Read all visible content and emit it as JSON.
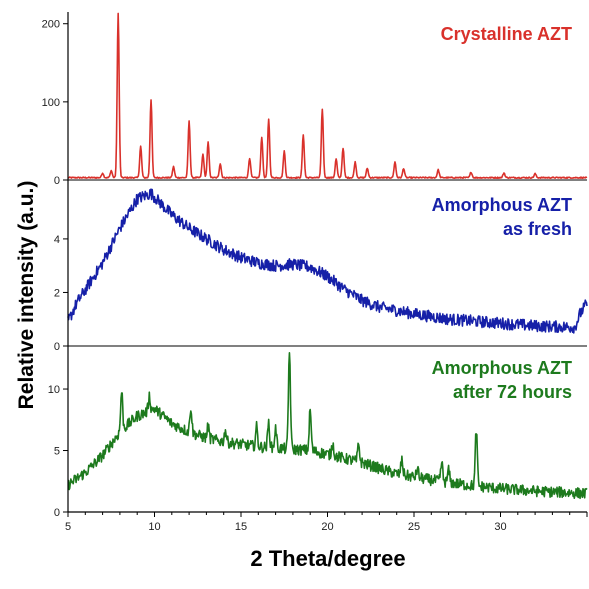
{
  "chart_data": {
    "type": "line",
    "xlabel": "2 Theta/degree",
    "ylabel": "Relative intensity (a.u.)",
    "xlim": [
      5,
      35
    ],
    "xticks": [
      5,
      10,
      15,
      20,
      25,
      30
    ],
    "grid": false,
    "panels": [
      {
        "name": "Crystalline AZT",
        "color": "#d9312b",
        "ylim": [
          0,
          215
        ],
        "yticks": [
          0,
          100,
          200
        ],
        "baseline": 3,
        "peaks": [
          {
            "x": 7.0,
            "y": 6
          },
          {
            "x": 7.5,
            "y": 9
          },
          {
            "x": 7.9,
            "y": 210
          },
          {
            "x": 9.2,
            "y": 40
          },
          {
            "x": 9.8,
            "y": 100
          },
          {
            "x": 11.1,
            "y": 14
          },
          {
            "x": 12.0,
            "y": 72
          },
          {
            "x": 12.8,
            "y": 30
          },
          {
            "x": 13.1,
            "y": 45
          },
          {
            "x": 13.8,
            "y": 18
          },
          {
            "x": 15.5,
            "y": 25
          },
          {
            "x": 16.2,
            "y": 52
          },
          {
            "x": 16.6,
            "y": 75
          },
          {
            "x": 17.5,
            "y": 34
          },
          {
            "x": 18.6,
            "y": 55
          },
          {
            "x": 19.7,
            "y": 88
          },
          {
            "x": 20.5,
            "y": 24
          },
          {
            "x": 20.9,
            "y": 38
          },
          {
            "x": 21.6,
            "y": 20
          },
          {
            "x": 22.3,
            "y": 12
          },
          {
            "x": 23.9,
            "y": 20
          },
          {
            "x": 24.4,
            "y": 12
          },
          {
            "x": 26.4,
            "y": 10
          },
          {
            "x": 28.3,
            "y": 7
          },
          {
            "x": 30.2,
            "y": 6
          },
          {
            "x": 32.0,
            "y": 5
          }
        ]
      },
      {
        "name": "Amorphous AZT as fresh",
        "color": "#1620a8",
        "ylim": [
          0,
          6.2
        ],
        "yticks": [
          0,
          2,
          4
        ],
        "profile": [
          {
            "x": 5.0,
            "y": 0.9
          },
          {
            "x": 5.5,
            "y": 1.6
          },
          {
            "x": 6.0,
            "y": 2.1
          },
          {
            "x": 7.0,
            "y": 3.1
          },
          {
            "x": 8.0,
            "y": 4.4
          },
          {
            "x": 9.0,
            "y": 5.5
          },
          {
            "x": 9.8,
            "y": 5.7
          },
          {
            "x": 11.0,
            "y": 4.9
          },
          {
            "x": 12.0,
            "y": 4.4
          },
          {
            "x": 13.0,
            "y": 4.0
          },
          {
            "x": 14.0,
            "y": 3.6
          },
          {
            "x": 15.0,
            "y": 3.3
          },
          {
            "x": 16.0,
            "y": 3.1
          },
          {
            "x": 17.0,
            "y": 3.0
          },
          {
            "x": 18.0,
            "y": 3.05
          },
          {
            "x": 19.0,
            "y": 2.95
          },
          {
            "x": 20.0,
            "y": 2.6
          },
          {
            "x": 21.0,
            "y": 2.1
          },
          {
            "x": 22.0,
            "y": 1.7
          },
          {
            "x": 23.0,
            "y": 1.45
          },
          {
            "x": 25.0,
            "y": 1.2
          },
          {
            "x": 27.0,
            "y": 1.0
          },
          {
            "x": 30.0,
            "y": 0.85
          },
          {
            "x": 32.0,
            "y": 0.75
          },
          {
            "x": 34.3,
            "y": 0.7
          },
          {
            "x": 34.6,
            "y": 1.2
          },
          {
            "x": 35.0,
            "y": 1.6
          }
        ],
        "noise": 0.22
      },
      {
        "name": "Amorphous AZT after 72 hours",
        "color": "#1d7a1d",
        "ylim": [
          0,
          13.5
        ],
        "yticks": [
          0,
          5,
          10
        ],
        "profile": [
          {
            "x": 5.0,
            "y": 2.2
          },
          {
            "x": 6.0,
            "y": 3.2
          },
          {
            "x": 7.0,
            "y": 4.6
          },
          {
            "x": 8.0,
            "y": 6.5
          },
          {
            "x": 9.0,
            "y": 7.8
          },
          {
            "x": 10.0,
            "y": 8.4
          },
          {
            "x": 11.0,
            "y": 7.2
          },
          {
            "x": 12.0,
            "y": 6.5
          },
          {
            "x": 13.0,
            "y": 6.0
          },
          {
            "x": 14.0,
            "y": 5.7
          },
          {
            "x": 15.0,
            "y": 5.5
          },
          {
            "x": 16.0,
            "y": 5.3
          },
          {
            "x": 17.0,
            "y": 5.2
          },
          {
            "x": 18.0,
            "y": 5.1
          },
          {
            "x": 19.0,
            "y": 5.0
          },
          {
            "x": 20.0,
            "y": 4.7
          },
          {
            "x": 22.0,
            "y": 4.0
          },
          {
            "x": 24.0,
            "y": 3.1
          },
          {
            "x": 26.0,
            "y": 2.6
          },
          {
            "x": 28.0,
            "y": 2.2
          },
          {
            "x": 30.0,
            "y": 1.9
          },
          {
            "x": 32.0,
            "y": 1.7
          },
          {
            "x": 35.0,
            "y": 1.5
          }
        ],
        "peaks": [
          {
            "x": 8.1,
            "y": 3.2
          },
          {
            "x": 9.7,
            "y": 1.2
          },
          {
            "x": 12.1,
            "y": 2.1
          },
          {
            "x": 13.1,
            "y": 1.0
          },
          {
            "x": 14.1,
            "y": 1.0
          },
          {
            "x": 15.9,
            "y": 1.6
          },
          {
            "x": 16.6,
            "y": 2.0
          },
          {
            "x": 17.0,
            "y": 1.6
          },
          {
            "x": 17.8,
            "y": 8.0
          },
          {
            "x": 19.0,
            "y": 3.3
          },
          {
            "x": 20.3,
            "y": 1.0
          },
          {
            "x": 21.8,
            "y": 1.4
          },
          {
            "x": 24.3,
            "y": 1.2
          },
          {
            "x": 25.2,
            "y": 0.7
          },
          {
            "x": 26.6,
            "y": 1.5
          },
          {
            "x": 27.0,
            "y": 1.0
          },
          {
            "x": 28.6,
            "y": 4.6
          }
        ],
        "noise": 0.45
      }
    ]
  }
}
